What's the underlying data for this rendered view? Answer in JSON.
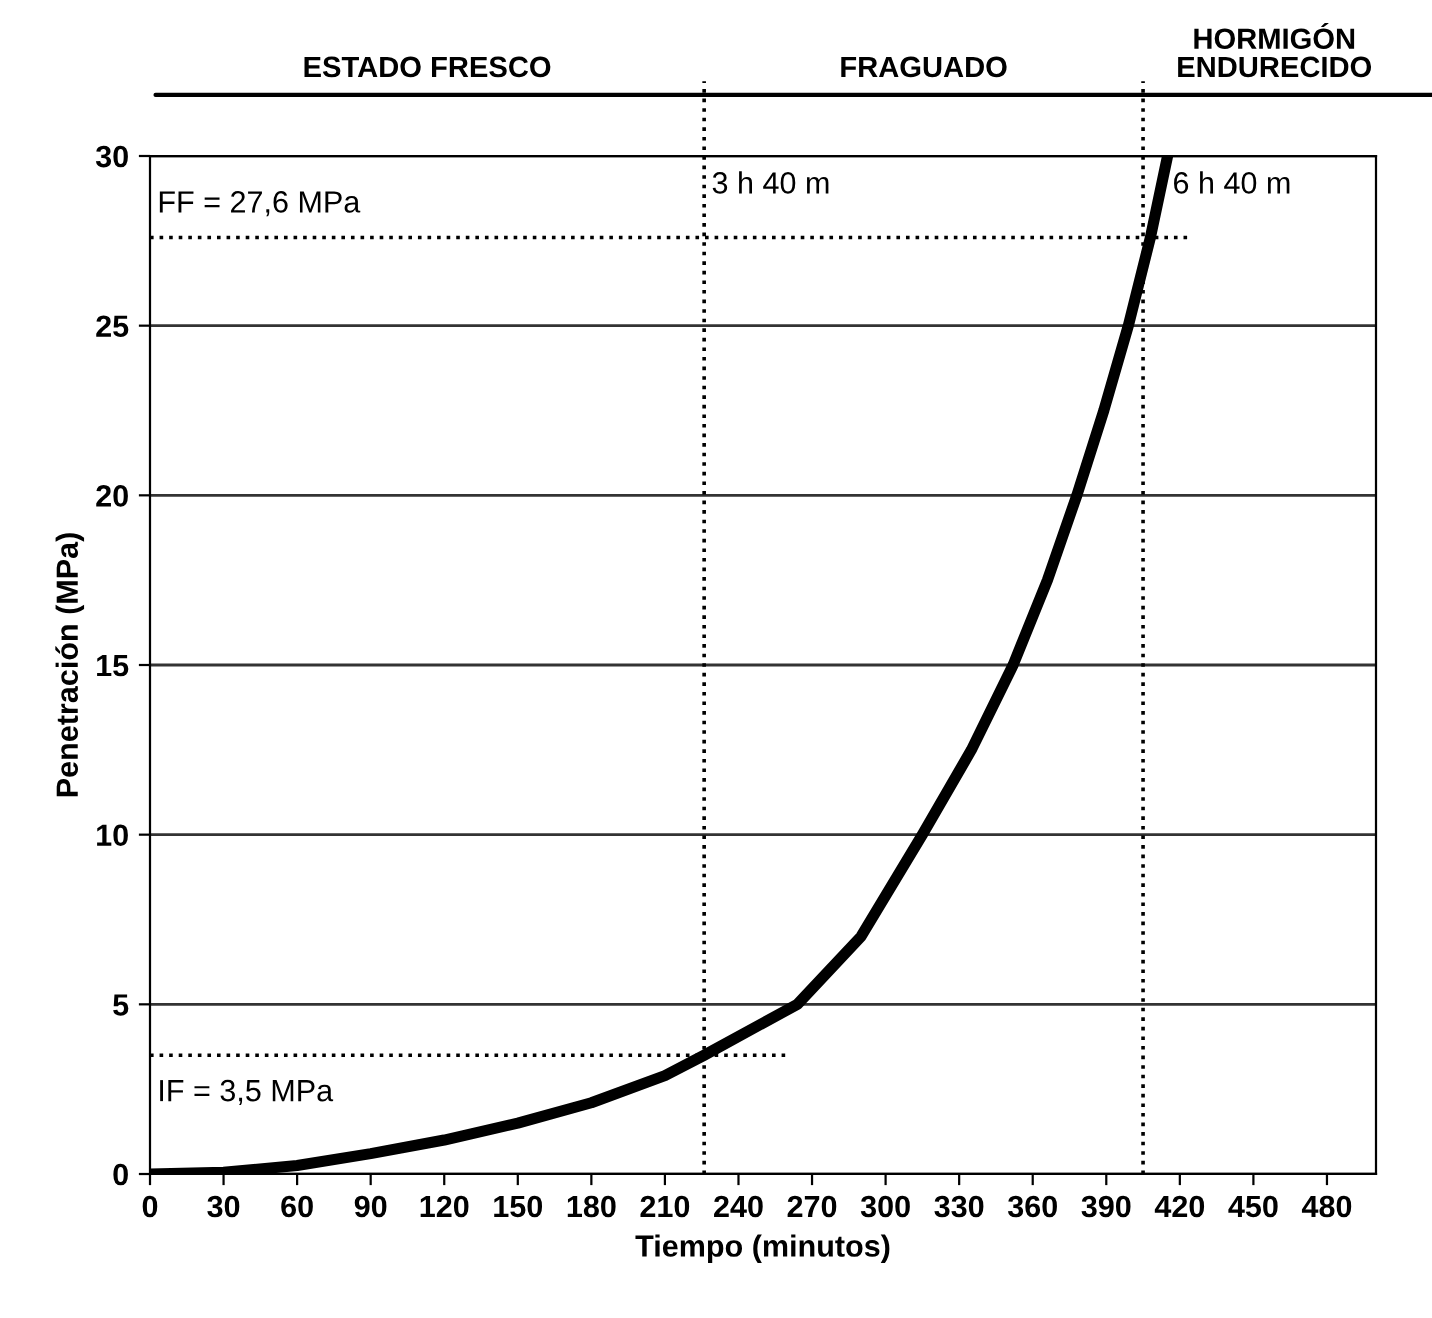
{
  "chart_data": {
    "type": "line",
    "xlabel": "Tiempo (minutos)",
    "ylabel": "Penetración (MPa)",
    "xlim": [
      0,
      500
    ],
    "xticks": [
      0,
      30,
      60,
      90,
      120,
      150,
      180,
      210,
      240,
      270,
      300,
      330,
      360,
      390,
      420,
      450,
      480
    ],
    "ylim": [
      0,
      30
    ],
    "yticks": [
      0,
      5,
      10,
      15,
      20,
      25,
      30
    ],
    "grid": "y",
    "legend": false,
    "series": [
      {
        "color": "#000000",
        "x": [
          0,
          30,
          60,
          90,
          120,
          150,
          180,
          210,
          226,
          264,
          290,
          315,
          335,
          352,
          366,
          378,
          389,
          399,
          408,
          415
        ],
        "values": [
          0,
          0.05,
          0.25,
          0.6,
          1.0,
          1.5,
          2.1,
          2.9,
          3.5,
          5,
          7,
          10,
          12.5,
          15,
          17.5,
          20,
          22.5,
          25,
          27.6,
          30
        ]
      },
      {
        "color": "#000000",
        "line_style": "dotted",
        "x": [
          0,
          260
        ],
        "values": [
          3.5,
          3.5
        ]
      },
      {
        "color": "#000000",
        "line_style": "dotted",
        "x": [
          0,
          423
        ],
        "values": [
          27.6,
          27.6
        ]
      }
    ],
    "ref_lines": [
      {
        "axis": "x",
        "value": 226,
        "label": "3 h 40 m",
        "line_style": "dotted"
      },
      {
        "axis": "x",
        "value": 405,
        "label": "6 h 40 m",
        "line_style": "dotted"
      }
    ],
    "annotations": [
      "ESTADO FRESCO",
      "FRAGUADO",
      "HORMIGÓN\nENDURECIDO",
      {
        "text": "FF = 27,6 MPa",
        "x": 0,
        "y": 27.6
      },
      {
        "text": "IF = 3,5 MPa",
        "x": 0,
        "y": 3.5
      }
    ]
  }
}
